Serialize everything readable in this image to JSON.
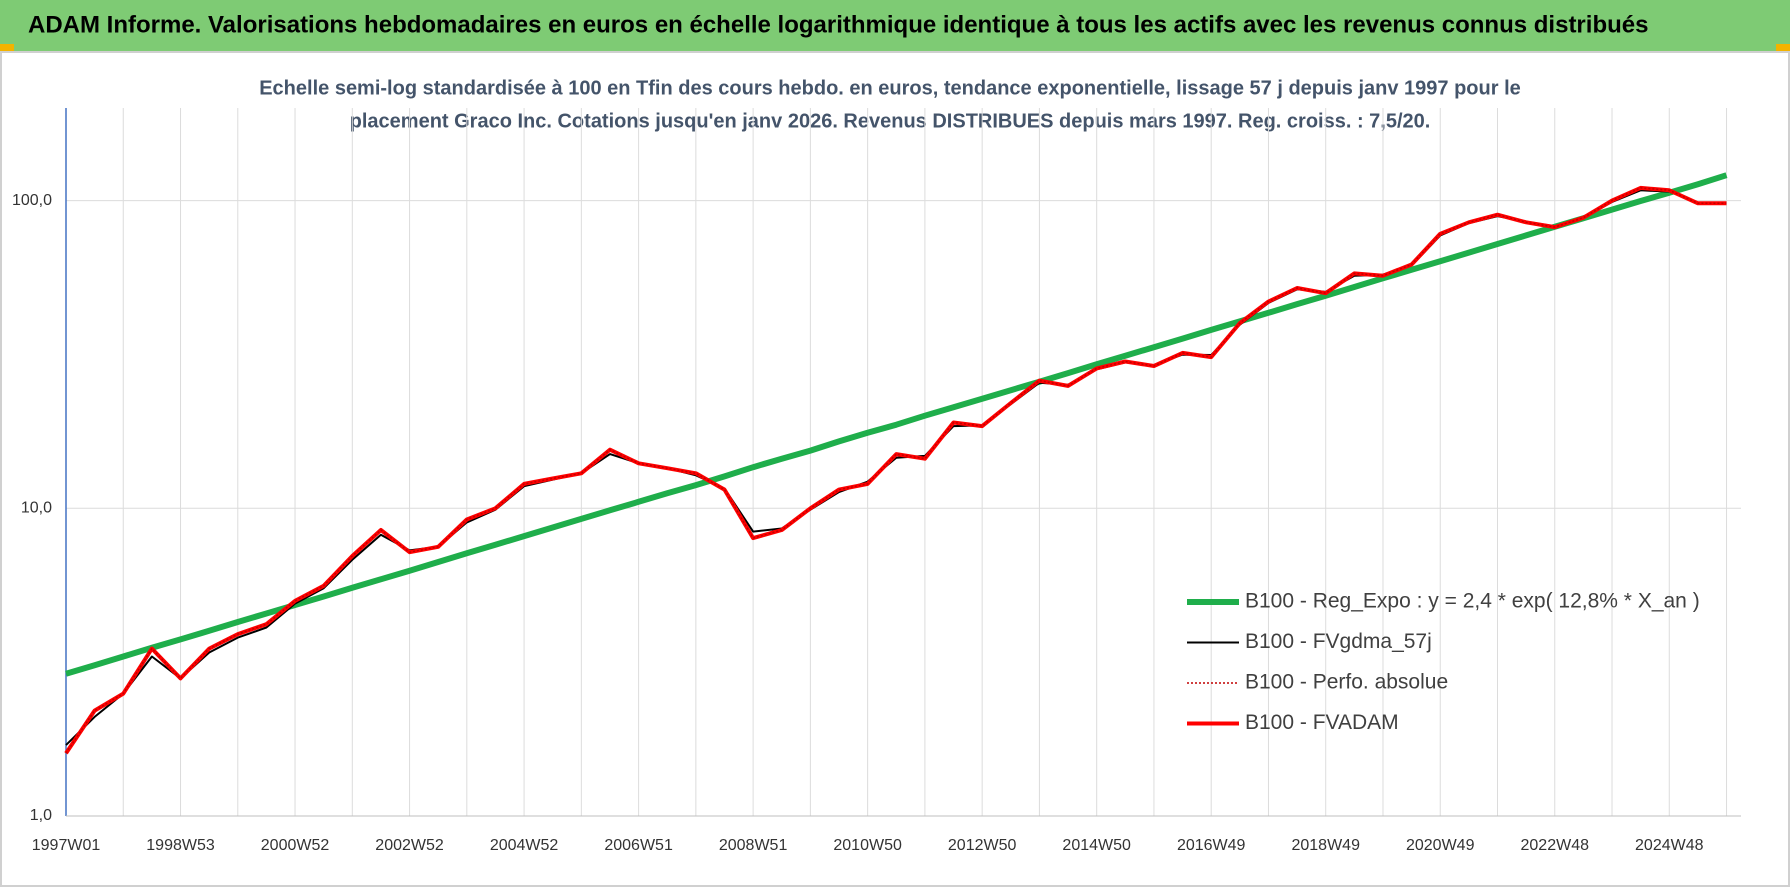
{
  "chart_data": {
    "type": "line",
    "header": "ADAM Informe. Valorisations hebdomadaires en euros en échelle logarithmique identique à tous les actifs avec les revenus connus distribués",
    "subtitle": [
      "Echelle semi-log standardisée à 100 en Tfin des cours hebdo. en euros, tendance exponentielle, lissage 57 j depuis janv 1997 pour le",
      "placement Graco Inc. Cotations jusqu'en janv 2026. Revenus DISTRIBUES depuis mars 1997. Reg. croiss. : 7,5/20."
    ],
    "categories": [
      "1997W01",
      null,
      null,
      null,
      "1998W53",
      null,
      null,
      null,
      "2000W52",
      null,
      null,
      null,
      "2002W52",
      null,
      null,
      null,
      "2004W52",
      null,
      null,
      null,
      "2006W51",
      null,
      null,
      null,
      "2008W51",
      null,
      null,
      null,
      "2010W50",
      null,
      null,
      null,
      "2012W50",
      null,
      null,
      null,
      "2014W50",
      null,
      null,
      null,
      "2016W49",
      null,
      null,
      null,
      "2018W49",
      null,
      null,
      null,
      "2020W49",
      null,
      null,
      null,
      "2022W48",
      null,
      null,
      null,
      "2024W48",
      null,
      null
    ],
    "log_scale": true,
    "ylim": [
      1,
      200
    ],
    "yticks": [
      {
        "value": 1,
        "label": "1,0"
      },
      {
        "value": 10,
        "label": "10,0"
      },
      {
        "value": 100,
        "label": "100,0"
      }
    ],
    "grid": true,
    "legend": "lower right",
    "series": [
      {
        "name": "B100 - Reg_Expo : y = 2,4 * exp( 12,8% *  X_an )",
        "color": "#1fae4b",
        "width": 6,
        "values": [
          2.9,
          3.09,
          3.3,
          3.52,
          3.75,
          4.0,
          4.27,
          4.55,
          4.85,
          5.17,
          5.52,
          5.88,
          6.27,
          6.69,
          7.14,
          7.61,
          8.12,
          8.66,
          9.24,
          9.85,
          10.5,
          11.2,
          11.9,
          12.7,
          13.6,
          14.5,
          15.4,
          16.5,
          17.6,
          18.7,
          20.0,
          21.3,
          22.7,
          24.2,
          25.8,
          27.5,
          29.4,
          31.3,
          33.4,
          35.6,
          38.0,
          40.5,
          43.2,
          46.1,
          49.1,
          52.4,
          55.9,
          59.6,
          63.5,
          67.8,
          72.3,
          77.1,
          82.2,
          87.7,
          93.5,
          99.7,
          106,
          113,
          121
        ]
      },
      {
        "name": "B100 - FVgdma_57j",
        "color": "#000000",
        "width": 2,
        "values": [
          1.7,
          2.1,
          2.5,
          3.3,
          2.8,
          3.4,
          3.8,
          4.1,
          4.9,
          5.5,
          6.8,
          8.2,
          7.3,
          7.5,
          9.0,
          9.9,
          11.8,
          12.4,
          13.0,
          15.0,
          14.0,
          13.5,
          12.8,
          11.6,
          8.4,
          8.6,
          9.9,
          11.3,
          12.2,
          14.6,
          14.8,
          18.5,
          18.6,
          21.8,
          25.6,
          25.2,
          28.3,
          29.8,
          29.2,
          31.6,
          31.5,
          39.5,
          46.5,
          51.5,
          50.5,
          57.0,
          57.5,
          61.5,
          77.0,
          84.5,
          89.0,
          85.5,
          82.5,
          88.0,
          99.0,
          108,
          107,
          98.5,
          98.0
        ]
      },
      {
        "name": "B100 - Perfo. absolue",
        "color": "#c00000",
        "width": 1.5,
        "dash": true,
        "values": [
          1.6,
          2.2,
          2.5,
          3.5,
          2.8,
          3.5,
          3.9,
          4.2,
          5.0,
          5.6,
          7.0,
          8.5,
          7.2,
          7.5,
          9.2,
          10.0,
          12.0,
          12.5,
          13.0,
          15.5,
          14.0,
          13.5,
          13.0,
          11.5,
          8.0,
          8.5,
          10.0,
          11.5,
          12.0,
          15.0,
          14.5,
          19.0,
          18.5,
          22.0,
          26.0,
          25.0,
          28.5,
          30.0,
          29.0,
          32.0,
          31.0,
          40.0,
          47.0,
          52.0,
          50.0,
          58.0,
          57.0,
          62.0,
          78.0,
          85.0,
          90.0,
          85.0,
          82.0,
          88.0,
          100.0,
          110,
          108,
          98.0,
          98.0
        ]
      },
      {
        "name": "B100 - FVADAM",
        "color": "#ff0000",
        "width": 4,
        "values": [
          1.6,
          2.2,
          2.5,
          3.5,
          2.8,
          3.5,
          3.9,
          4.2,
          5.0,
          5.6,
          7.0,
          8.5,
          7.2,
          7.5,
          9.2,
          10.0,
          12.0,
          12.5,
          13.0,
          15.5,
          14.0,
          13.5,
          13.0,
          11.5,
          8.0,
          8.5,
          10.0,
          11.5,
          12.0,
          15.0,
          14.5,
          19.0,
          18.5,
          22.0,
          26.0,
          25.0,
          28.5,
          30.0,
          29.0,
          32.0,
          31.0,
          40.0,
          47.0,
          52.0,
          50.0,
          58.0,
          57.0,
          62.0,
          78.0,
          85.0,
          90.0,
          85.0,
          82.0,
          88.0,
          100.0,
          110,
          108,
          98.0,
          98.0
        ]
      }
    ]
  }
}
